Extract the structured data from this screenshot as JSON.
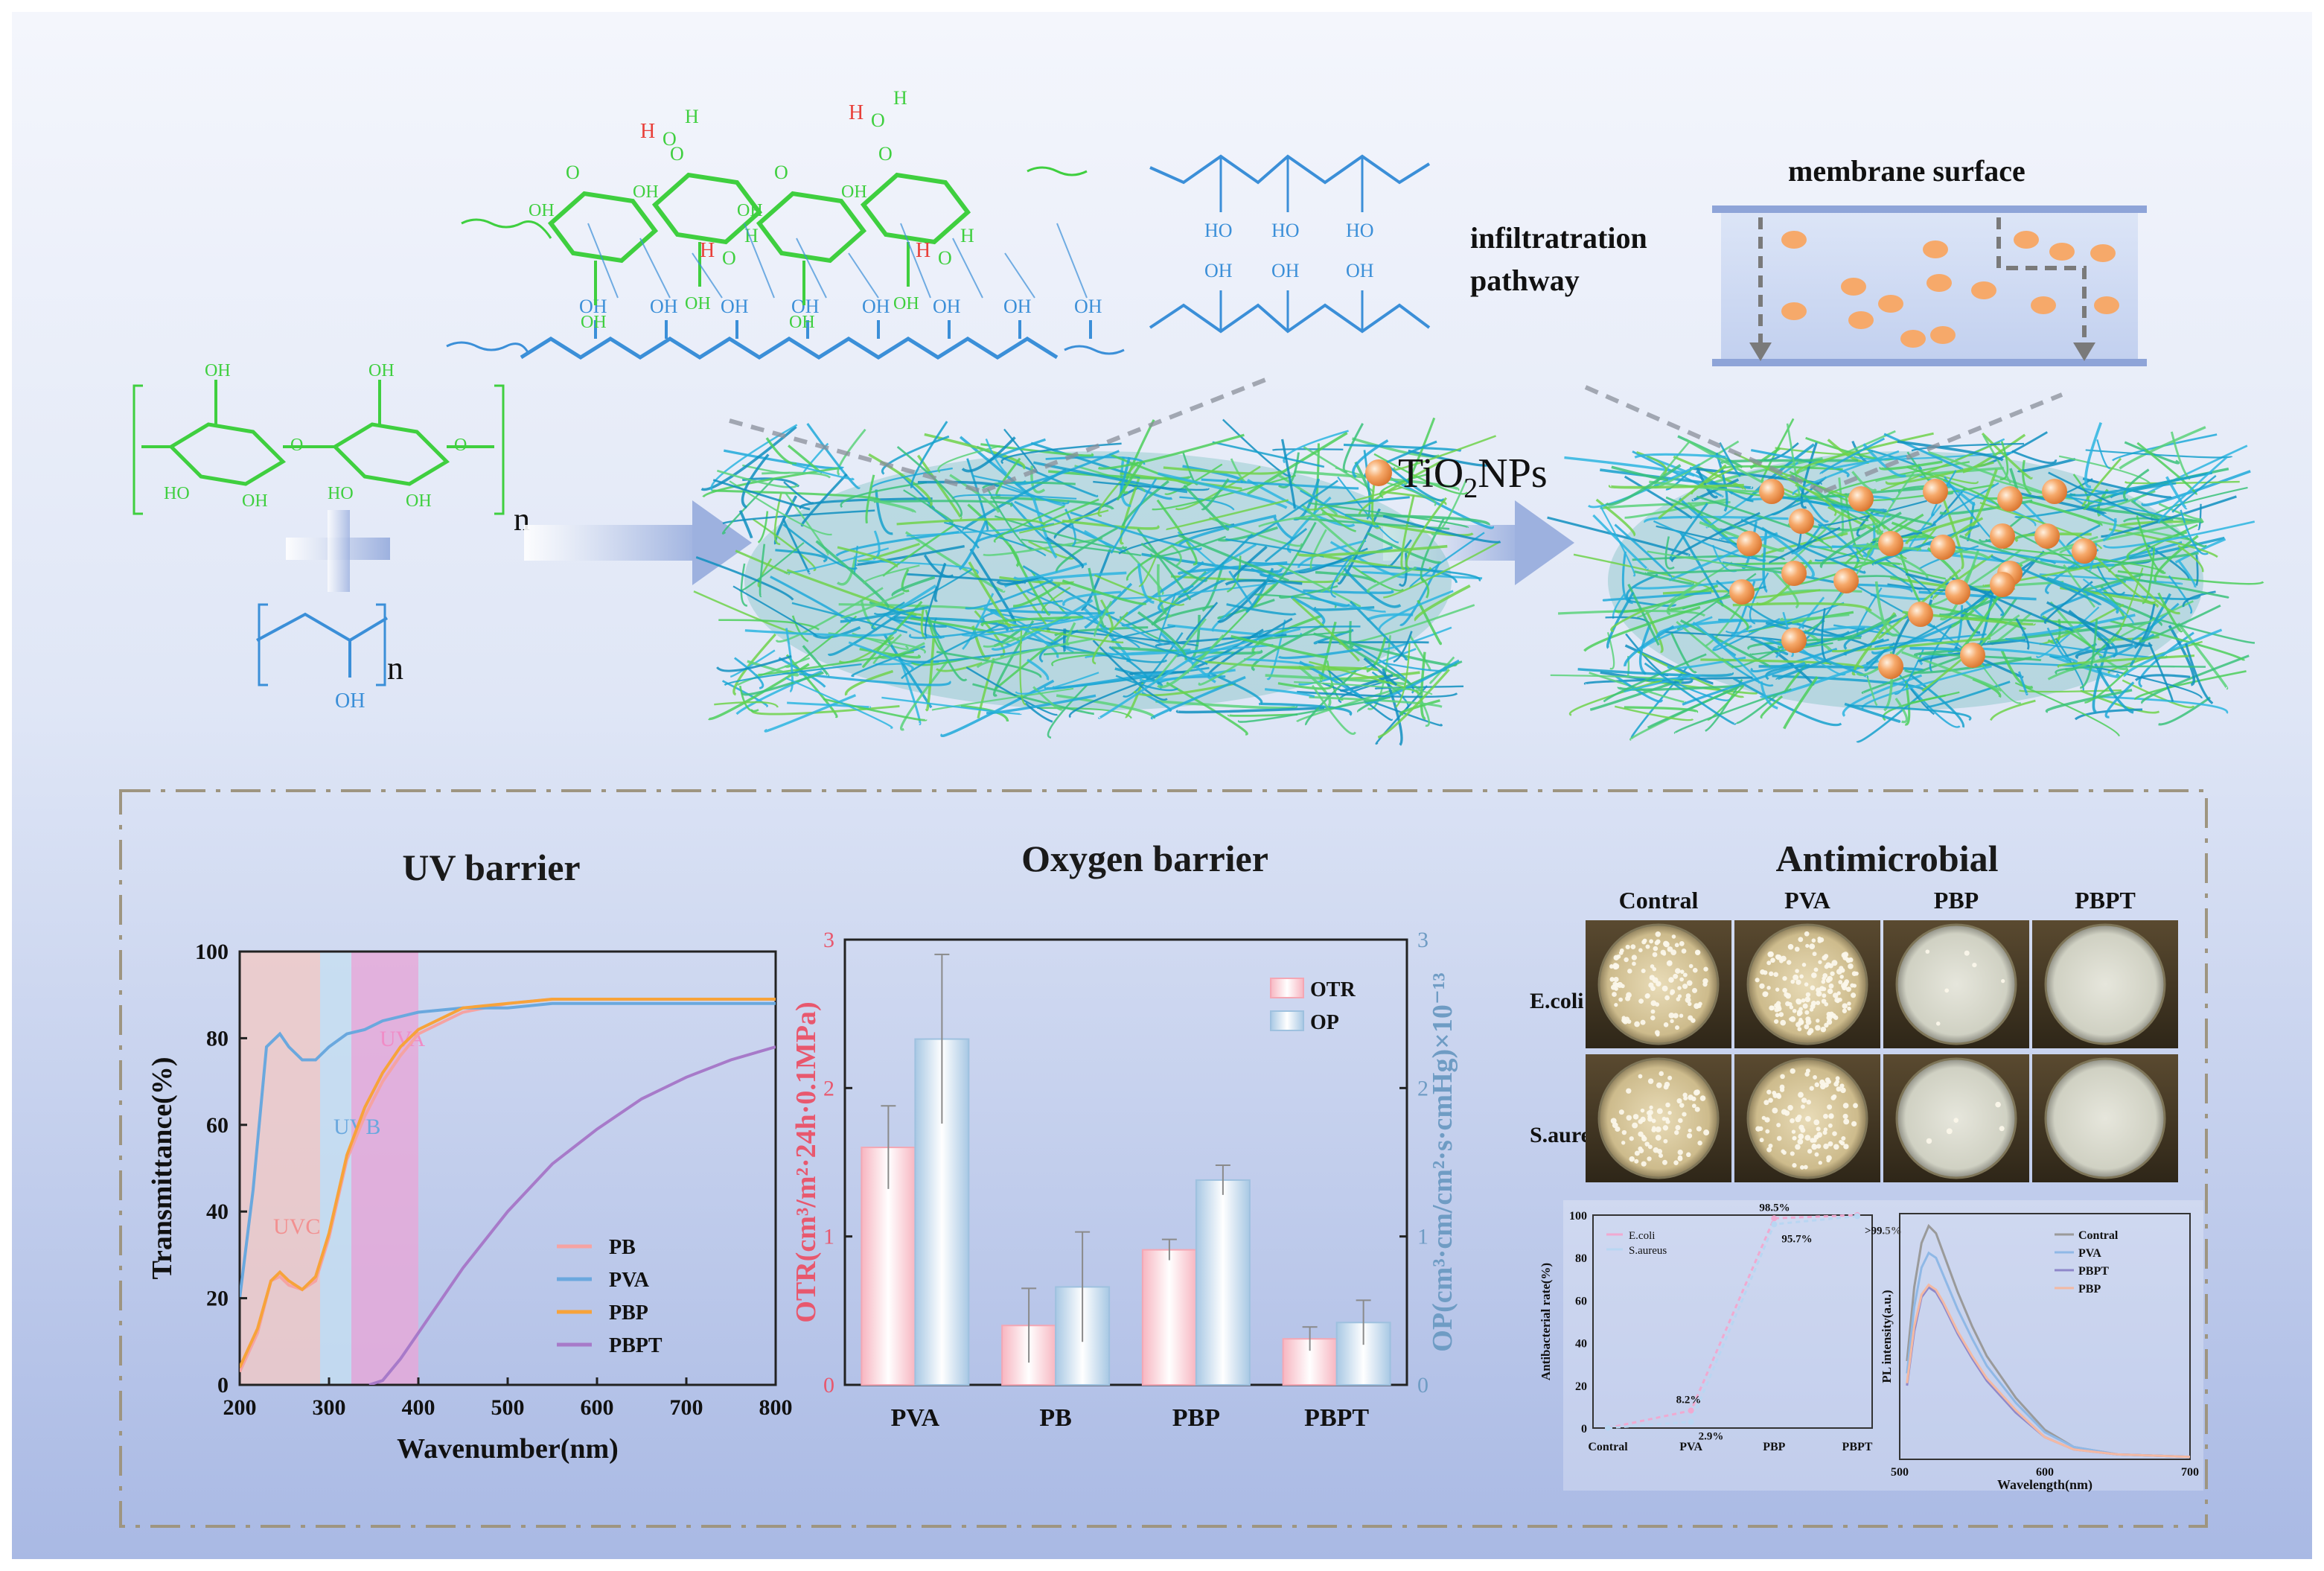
{
  "top": {
    "nanoparticle_label": "TiO",
    "nanoparticle_sub": "2",
    "nanoparticle_label_tail": "NPs",
    "membrane_surface_label": "membrane surface",
    "infiltration_label_1": "infiltratration",
    "infiltration_label_2": "pathway",
    "repeat_n": "n",
    "repeat_n2": "n",
    "oh": "OH",
    "ho": "HO",
    "o": "O",
    "h": "H"
  },
  "panels": {
    "uv_title": "UV barrier",
    "oxygen_title": "Oxygen barrier",
    "antimicrobial_title": "Antimicrobial"
  },
  "colors": {
    "cellulose_green": "#3fcf3f",
    "pva_blue": "#3b8fd8",
    "hbond_red": "#e8403a",
    "particle_orange": "#f6a96a",
    "pb": "#f5a3a3",
    "pva": "#6aa8de",
    "pbp": "#f7a33a",
    "pbpt": "#a77ac9",
    "otr": "#f4a7b4",
    "op": "#9ec1df",
    "otr_axis": "#e8586e",
    "op_axis": "#6f9cc4"
  },
  "chart_data": [
    {
      "type": "line",
      "xlabel": "Wavenumber(nm)",
      "ylabel": "Transmittance(%)",
      "xlim": [
        200,
        800
      ],
      "ylim": [
        0,
        100
      ],
      "xticks": [
        200,
        300,
        400,
        500,
        600,
        700,
        800
      ],
      "yticks": [
        0,
        20,
        40,
        60,
        80,
        100
      ],
      "bands": [
        {
          "name": "UVC",
          "from": 200,
          "to": 290
        },
        {
          "name": "UVB",
          "from": 290,
          "to": 325
        },
        {
          "name": "UVA",
          "from": 325,
          "to": 400
        }
      ],
      "legend_position": "bottom-right",
      "series": [
        {
          "name": "PB",
          "x": [
            200,
            220,
            235,
            245,
            255,
            270,
            285,
            300,
            320,
            340,
            360,
            380,
            400,
            450,
            500,
            550,
            600,
            700,
            800
          ],
          "y": [
            3,
            12,
            24,
            25,
            23,
            22,
            24,
            34,
            52,
            62,
            70,
            76,
            81,
            86,
            88,
            89,
            89,
            89,
            89
          ]
        },
        {
          "name": "PVA",
          "x": [
            200,
            215,
            230,
            245,
            255,
            270,
            285,
            300,
            320,
            340,
            360,
            380,
            400,
            450,
            500,
            550,
            600,
            700,
            800
          ],
          "y": [
            20,
            45,
            78,
            81,
            78,
            75,
            75,
            78,
            81,
            82,
            84,
            85,
            86,
            87,
            87,
            88,
            88,
            88,
            88
          ]
        },
        {
          "name": "PBP",
          "x": [
            200,
            220,
            235,
            245,
            255,
            270,
            285,
            300,
            320,
            340,
            360,
            380,
            400,
            450,
            500,
            550,
            600,
            700,
            800
          ],
          "y": [
            4,
            13,
            24,
            26,
            24,
            22,
            25,
            35,
            53,
            64,
            72,
            78,
            82,
            87,
            88,
            89,
            89,
            89,
            89
          ]
        },
        {
          "name": "PBPT",
          "x": [
            345,
            360,
            380,
            400,
            450,
            500,
            550,
            600,
            650,
            700,
            750,
            800
          ],
          "y": [
            0,
            1,
            6,
            12,
            27,
            40,
            51,
            59,
            66,
            71,
            75,
            78
          ]
        }
      ]
    },
    {
      "type": "bar",
      "categories": [
        "PVA",
        "PB",
        "PBP",
        "PBPT"
      ],
      "ylabel": "OTR(cm³/m²·24h·0.1MPa)",
      "ylabel_right": "OP(cm³·cm/cm²·s·cmHg)×10⁻¹³",
      "ylim": [
        0,
        3
      ],
      "yticks": [
        0,
        1,
        2,
        3
      ],
      "legend_position": "top-right",
      "series": [
        {
          "name": "OTR",
          "values": [
            1.6,
            0.4,
            0.91,
            0.31
          ],
          "errors": [
            0.28,
            0.25,
            0.07,
            0.08
          ]
        },
        {
          "name": "OP",
          "values": [
            2.33,
            0.66,
            1.38,
            0.42
          ],
          "errors": [
            0.57,
            0.37,
            0.1,
            0.15
          ]
        }
      ]
    },
    {
      "type": "table",
      "columns": [
        "Contral",
        "PVA",
        "PBP",
        "PBPT"
      ],
      "rows": [
        "E.coli",
        "S.aureus"
      ],
      "colonies": [
        [
          110,
          150,
          6,
          0
        ],
        [
          80,
          100,
          5,
          0
        ]
      ]
    },
    {
      "type": "line",
      "xlabel": "",
      "ylabel": "Antibacterial rate(%)",
      "categories": [
        "Contral",
        "PVA",
        "PBP",
        "PBPT"
      ],
      "ylim": [
        0,
        100
      ],
      "yticks": [
        0,
        20,
        40,
        60,
        80,
        100
      ],
      "legend_position": "top-left",
      "series": [
        {
          "name": "E.coli",
          "values": [
            0,
            8.2,
            98.5,
            100
          ],
          "labels": [
            "",
            "8.2%",
            "98.5%",
            ""
          ]
        },
        {
          "name": "S.aureus",
          "values": [
            0,
            2.9,
            95.7,
            99.5
          ],
          "labels": [
            "",
            "2.9%",
            "95.7%",
            ">99.5%"
          ]
        }
      ]
    },
    {
      "type": "line",
      "xlabel": "Wavelength(nm)",
      "ylabel": "PL intensity(a.u.)",
      "xlim": [
        500,
        700
      ],
      "xticks": [
        500,
        600,
        700
      ],
      "legend_position": "top-right",
      "series": [
        {
          "name": "Contral",
          "x": [
            505,
            510,
            515,
            520,
            525,
            530,
            540,
            550,
            560,
            580,
            600,
            620,
            650,
            700
          ],
          "y": [
            40,
            70,
            88,
            95,
            92,
            84,
            68,
            54,
            42,
            25,
            12,
            5,
            2,
            1
          ]
        },
        {
          "name": "PVA",
          "x": [
            505,
            510,
            515,
            520,
            525,
            530,
            540,
            550,
            560,
            580,
            600,
            620,
            650,
            700
          ],
          "y": [
            35,
            62,
            78,
            84,
            82,
            75,
            61,
            49,
            38,
            23,
            11,
            5,
            2,
            1
          ]
        },
        {
          "name": "PBPT",
          "x": [
            505,
            510,
            515,
            520,
            525,
            530,
            540,
            550,
            560,
            580,
            600,
            620,
            650,
            700
          ],
          "y": [
            30,
            52,
            66,
            70,
            68,
            63,
            51,
            41,
            32,
            19,
            9,
            4,
            2,
            1
          ]
        },
        {
          "name": "PBP",
          "x": [
            505,
            510,
            515,
            520,
            525,
            530,
            540,
            550,
            560,
            580,
            600,
            620,
            650,
            700
          ],
          "y": [
            31,
            54,
            67,
            71,
            69,
            64,
            52,
            42,
            33,
            20,
            9,
            4,
            2,
            1
          ]
        }
      ]
    }
  ]
}
